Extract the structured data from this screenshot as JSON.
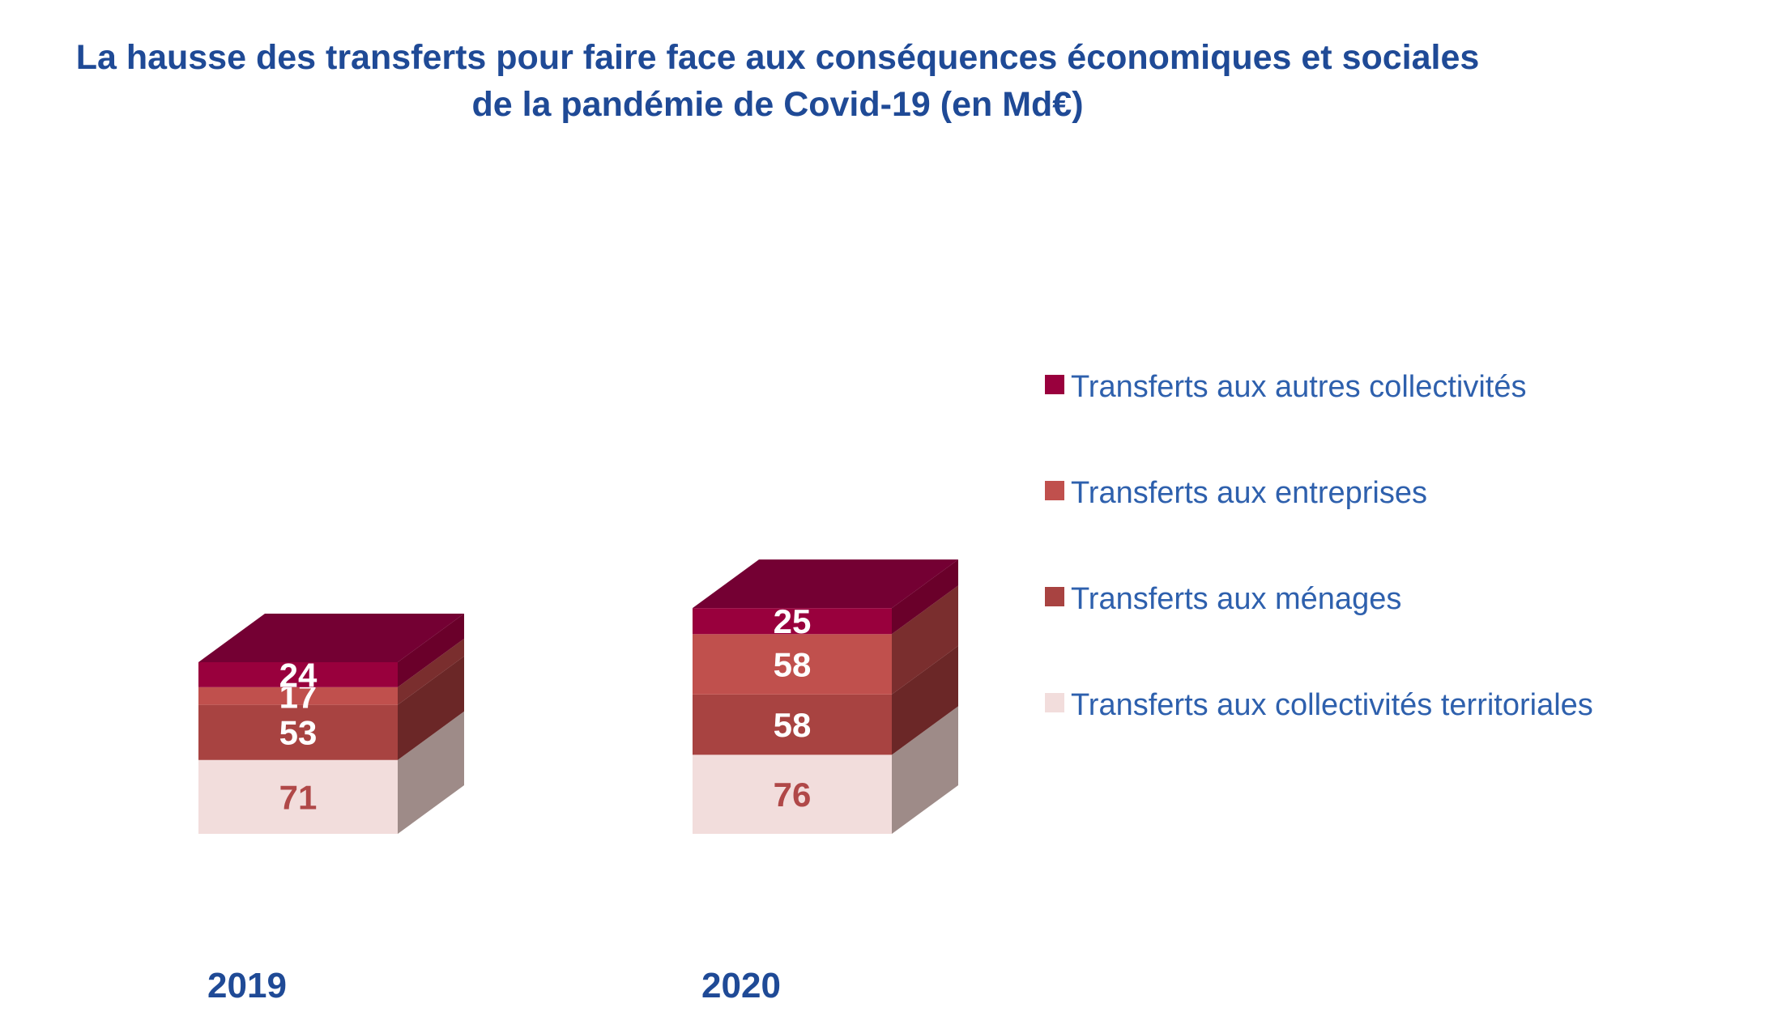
{
  "chart_data": {
    "type": "bar",
    "stacked": true,
    "three_d": true,
    "title_lines": [
      "La hausse des transferts pour faire face aux conséquences économiques et sociales",
      "de la pandémie de Covid-19 (en Md€)"
    ],
    "categories": [
      "2019",
      "2020"
    ],
    "series": [
      {
        "name": "Transferts aux collectivités territoriales",
        "values": [
          71,
          76
        ],
        "color": "#f2dddc",
        "side_color": "#9e8b88",
        "label_color": "#b04848"
      },
      {
        "name": "Transferts aux ménages",
        "values": [
          53,
          58
        ],
        "color": "#a84341",
        "side_color": "#6b2727",
        "label_color": "#ffffff"
      },
      {
        "name": "Transferts aux entreprises",
        "values": [
          17,
          58
        ],
        "color": "#c0504d",
        "side_color": "#7a2e2e",
        "label_color": "#ffffff"
      },
      {
        "name": "Transferts aux autres collectivités",
        "values": [
          24,
          25
        ],
        "color": "#99003d",
        "side_color": "#6a002a",
        "top_color": "#740033",
        "label_color": "#ffffff"
      }
    ],
    "legend_order": [
      "Transferts aux autres collectivités",
      "Transferts aux entreprises",
      "Transferts aux ménages",
      "Transferts aux collectivités territoriales"
    ],
    "legend_position": "right",
    "grid": false,
    "xlabel": "",
    "ylabel": ""
  }
}
